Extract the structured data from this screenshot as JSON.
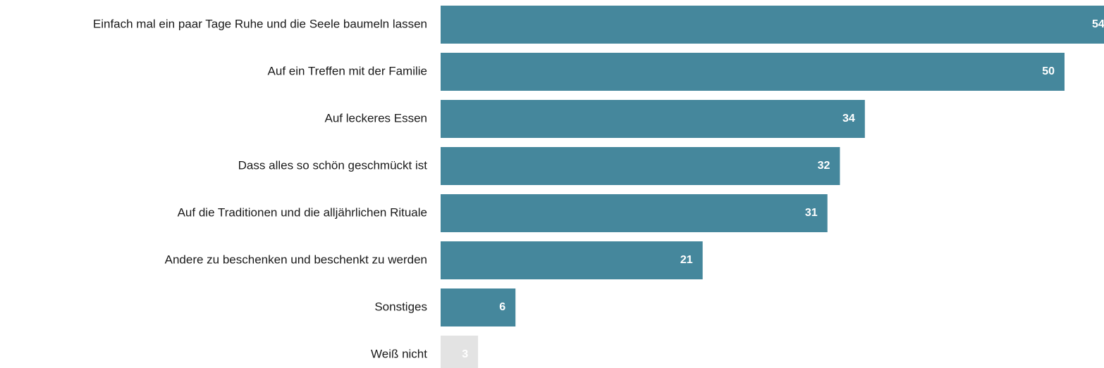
{
  "chart_data": {
    "type": "bar",
    "orientation": "horizontal",
    "categories": [
      "Einfach mal ein paar Tage Ruhe und die Seele baumeln lassen",
      "Auf ein Treffen mit der Familie",
      "Auf leckeres Essen",
      "Dass alles so schön geschmückt ist",
      "Auf die Traditionen und die alljährlichen Rituale",
      "Andere zu beschenken und beschenkt zu werden",
      "Sonstiges",
      "Weiß nicht"
    ],
    "values": [
      54,
      50,
      34,
      32,
      31,
      21,
      6,
      3
    ],
    "value_labels": [
      "54",
      "50",
      "34",
      "32",
      "31",
      "21",
      "6",
      "3"
    ],
    "bar_colors": [
      "#45879c",
      "#45879c",
      "#45879c",
      "#45879c",
      "#45879c",
      "#45879c",
      "#45879c",
      "#e3e3e3"
    ],
    "title": "",
    "xlabel": "",
    "ylabel": "",
    "xlim": [
      0,
      54
    ],
    "grid": false,
    "legend": "none"
  }
}
